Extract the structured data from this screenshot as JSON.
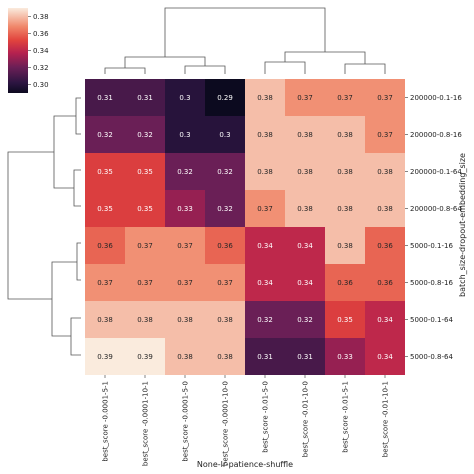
{
  "chart_data": {
    "type": "heatmap",
    "title": "",
    "xlabel": "None-lr-patience-shuffle",
    "ylabel": "batch_size-dropout-embedding_size",
    "columns": [
      "best_score -0.0001-5-1",
      "best_score -0.0001-10-1",
      "best_score -0.0001-5-0",
      "best_score -0.0001-10-0",
      "best_score -0.01-5-0",
      "best_score -0.01-10-0",
      "best_score -0.01-5-1",
      "best_score -0.01-10-1"
    ],
    "rows": [
      "200000-0.1-16",
      "200000-0.8-16",
      "200000-0.1-64",
      "200000-0.8-64",
      "5000-0.1-16",
      "5000-0.8-16",
      "5000-0.1-64",
      "5000-0.8-64"
    ],
    "values": [
      [
        0.31,
        0.31,
        0.3,
        0.29,
        0.38,
        0.37,
        0.37,
        0.37
      ],
      [
        0.32,
        0.32,
        0.3,
        0.3,
        0.38,
        0.38,
        0.38,
        0.37
      ],
      [
        0.35,
        0.35,
        0.32,
        0.32,
        0.38,
        0.38,
        0.38,
        0.38
      ],
      [
        0.35,
        0.35,
        0.33,
        0.32,
        0.37,
        0.38,
        0.38,
        0.38
      ],
      [
        0.36,
        0.37,
        0.37,
        0.36,
        0.34,
        0.34,
        0.38,
        0.36
      ],
      [
        0.37,
        0.37,
        0.37,
        0.37,
        0.34,
        0.34,
        0.36,
        0.36
      ],
      [
        0.38,
        0.38,
        0.38,
        0.38,
        0.32,
        0.32,
        0.35,
        0.34
      ],
      [
        0.39,
        0.39,
        0.38,
        0.38,
        0.31,
        0.31,
        0.33,
        0.34
      ]
    ],
    "value_format": "2dp",
    "colorbar": {
      "min": 0.29,
      "max": 0.39,
      "ticks": [
        0.3,
        0.32,
        0.34,
        0.36,
        0.38
      ],
      "tick_labels": [
        "0.30",
        "0.32",
        "0.34",
        "0.36",
        "0.38"
      ],
      "colormap": "rocket"
    },
    "dendrograms": {
      "rows": "left",
      "columns": "top"
    }
  }
}
